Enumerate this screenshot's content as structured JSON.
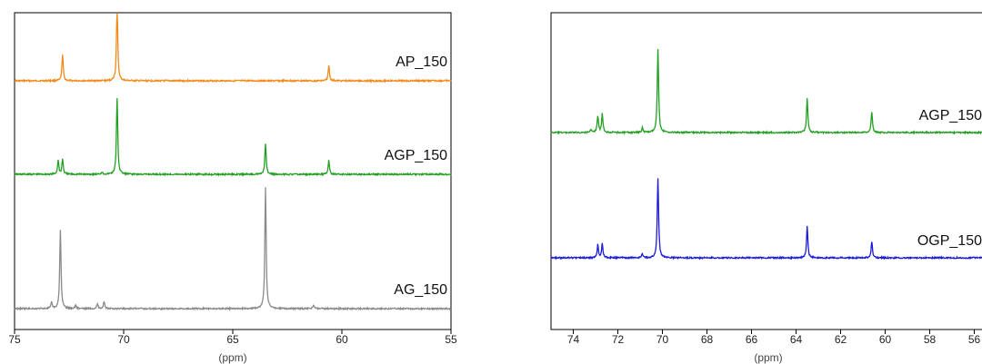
{
  "chart_data": [
    {
      "type": "line",
      "title": "",
      "xlabel": "(ppm)",
      "ylabel": "",
      "xlim": [
        75,
        55
      ],
      "x_reversed": true,
      "xticks": [
        "75",
        "70",
        "65",
        "60",
        "55"
      ],
      "grid": false,
      "legend": "none",
      "series": [
        {
          "name": "AP_150",
          "color": "#f28a1a",
          "peaks": [
            {
              "x": 72.8,
              "h": 0.38
            },
            {
              "x": 70.3,
              "h": 1.1
            },
            {
              "x": 60.6,
              "h": 0.22
            }
          ]
        },
        {
          "name": "AGP_150",
          "color": "#22a022",
          "peaks": [
            {
              "x": 73.0,
              "h": 0.18
            },
            {
              "x": 72.8,
              "h": 0.2
            },
            {
              "x": 71.0,
              "h": 0.03
            },
            {
              "x": 70.3,
              "h": 1.0
            },
            {
              "x": 63.5,
              "h": 0.4
            },
            {
              "x": 60.6,
              "h": 0.18
            }
          ]
        },
        {
          "name": "AG_150",
          "color": "#8a8a8a",
          "peaks": [
            {
              "x": 73.3,
              "h": 0.05
            },
            {
              "x": 72.9,
              "h": 0.65
            },
            {
              "x": 72.2,
              "h": 0.03
            },
            {
              "x": 71.2,
              "h": 0.04
            },
            {
              "x": 70.9,
              "h": 0.06
            },
            {
              "x": 63.5,
              "h": 1.0
            },
            {
              "x": 61.3,
              "h": 0.03
            }
          ]
        }
      ]
    },
    {
      "type": "line",
      "title": "",
      "xlabel": "(ppm)",
      "ylabel": "",
      "xlim": [
        75,
        55
      ],
      "x_reversed": true,
      "xticks": [
        "74",
        "72",
        "70",
        "68",
        "66",
        "64",
        "62",
        "60",
        "58",
        "56"
      ],
      "grid": false,
      "legend": "none",
      "series": [
        {
          "name": "AGP_150",
          "color": "#22a022",
          "peaks": [
            {
              "x": 73.2,
              "h": 0.04
            },
            {
              "x": 72.9,
              "h": 0.2
            },
            {
              "x": 72.7,
              "h": 0.22
            },
            {
              "x": 70.9,
              "h": 0.06
            },
            {
              "x": 70.2,
              "h": 1.0
            },
            {
              "x": 63.5,
              "h": 0.42
            },
            {
              "x": 60.6,
              "h": 0.25
            }
          ]
        },
        {
          "name": "OGP_150",
          "color": "#1a1adf",
          "peaks": [
            {
              "x": 72.9,
              "h": 0.16
            },
            {
              "x": 72.7,
              "h": 0.18
            },
            {
              "x": 70.9,
              "h": 0.05
            },
            {
              "x": 70.2,
              "h": 1.0
            },
            {
              "x": 63.5,
              "h": 0.4
            },
            {
              "x": 60.6,
              "h": 0.2
            }
          ]
        }
      ]
    }
  ]
}
